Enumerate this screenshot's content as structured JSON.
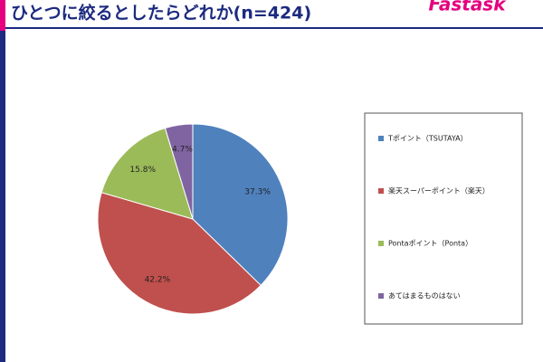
{
  "logo": "Fastask",
  "chart_data": {
    "type": "pie",
    "title": "ひとつに絞るとしたらどれか(n=424)",
    "categories": [
      "Tポイント（TSUTAYA）",
      "楽天スーパーポイント（楽天）",
      "Pontaポイント（Ponta）",
      "あてはまるものはない"
    ],
    "values": [
      37.3,
      42.2,
      15.8,
      4.7
    ],
    "value_labels": [
      "37.3%",
      "42.2%",
      "15.8%",
      "4.7%"
    ],
    "colors": [
      "#4f81bd",
      "#c0504d",
      "#9bbb59",
      "#8064a2"
    ],
    "legend": "right"
  }
}
